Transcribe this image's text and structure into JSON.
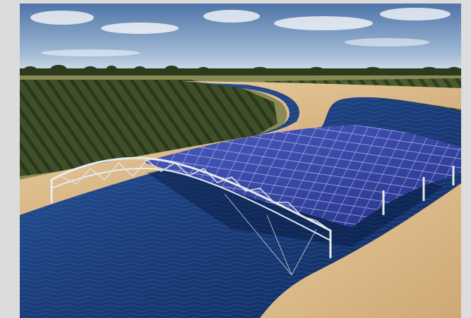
{
  "scene": {
    "subject": "floating-solar-canopy-over-canal",
    "colors": {
      "page_background": "#dcdcdc",
      "sky_top": "#4f74a8",
      "sky_bottom": "#c9d8e6",
      "orchard": "#3a4a24",
      "sand": "#d9b98a",
      "water": "#1d3f7a",
      "panel": "#3b4aa6",
      "truss": "#e6e9ec"
    }
  }
}
